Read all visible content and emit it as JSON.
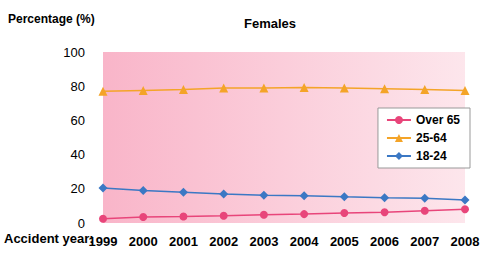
{
  "chart_data": {
    "type": "line",
    "title": "Females",
    "y_label": "Percentage (%)",
    "x_label": "Accident year:",
    "categories": [
      "1999",
      "2000",
      "2001",
      "2002",
      "2003",
      "2004",
      "2005",
      "2006",
      "2007",
      "2008"
    ],
    "series": [
      {
        "name": "Over 65",
        "color": "#e8457a",
        "marker": "circle",
        "values": [
          2.5,
          3.5,
          3.8,
          4.2,
          4.8,
          5.2,
          5.8,
          6.3,
          7.2,
          8.0
        ]
      },
      {
        "name": "25-64",
        "color": "#f4a428",
        "marker": "triangle",
        "values": [
          77,
          77.5,
          78,
          79,
          79,
          79.3,
          79,
          78.5,
          78,
          77.5
        ]
      },
      {
        "name": "18-24",
        "color": "#3b78c4",
        "marker": "diamond",
        "values": [
          20.5,
          19,
          18,
          17,
          16.3,
          16,
          15.3,
          14.8,
          14.5,
          13.5
        ]
      }
    ],
    "ylim": [
      0,
      100
    ],
    "yticks": [
      0,
      20,
      40,
      60,
      80,
      100
    ],
    "grid": false,
    "legend": "right"
  }
}
